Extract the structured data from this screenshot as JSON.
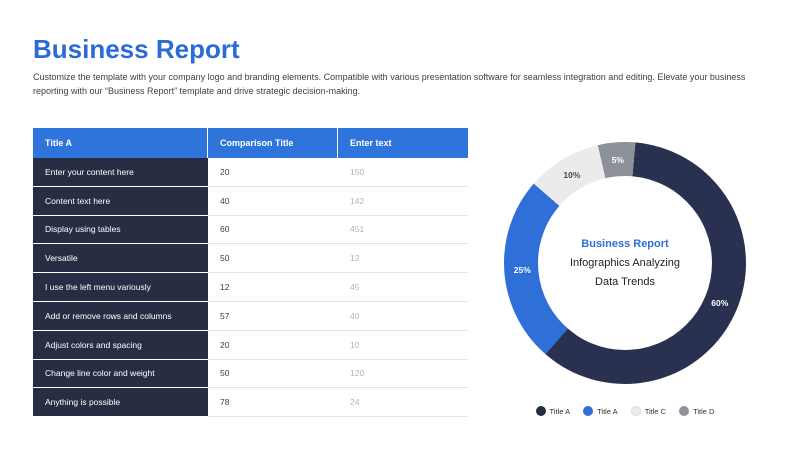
{
  "title": "Business Report",
  "subtitle": "Customize the template with your company logo and branding elements. Compatible with various presentation software for seamless integration and editing. Elevate your business reporting with our “Business Report” template and drive strategic decision-making.",
  "table": {
    "headers": [
      "Title A",
      "Comparison Title",
      "Enter text"
    ],
    "rows": [
      {
        "label": "Enter your content here",
        "value1": "20",
        "value2": "150"
      },
      {
        "label": "Content text here",
        "value1": "40",
        "value2": "142"
      },
      {
        "label": "Display using tables",
        "value1": "60",
        "value2": "451"
      },
      {
        "label": "Versatile",
        "value1": "50",
        "value2": "12"
      },
      {
        "label": "I use the left menu variously",
        "value1": "12",
        "value2": "45"
      },
      {
        "label": "Add or remove rows and columns",
        "value1": "57",
        "value2": "40"
      },
      {
        "label": "Adjust colors and spacing",
        "value1": "20",
        "value2": "10"
      },
      {
        "label": "Change line color and weight",
        "value1": "50",
        "value2": "120"
      },
      {
        "label": "Anything is possible",
        "value1": "78",
        "value2": "24"
      }
    ]
  },
  "chart_data": {
    "type": "pie",
    "subtype": "donut",
    "title": "Business Report",
    "center_title": "Business Report",
    "center_lines": [
      "Infographics Analyzing",
      "Data Trends"
    ],
    "start_angle_deg": -13,
    "segments": [
      {
        "label": "Title D",
        "value": 5,
        "color": "#8d9199",
        "label_color": "#ffffff"
      },
      {
        "label": "Title A",
        "value": 60,
        "color": "#2a3150",
        "label_color": "#ffffff"
      },
      {
        "label": "Title A",
        "value": 25,
        "color": "#2e6fd8",
        "label_color": "#ffffff"
      },
      {
        "label": "Title C",
        "value": 10,
        "color": "#ebebed",
        "label_color": "#4a4a4a"
      }
    ],
    "legend_position": "bottom",
    "legend": [
      {
        "label": "Title A",
        "color": "#272e44"
      },
      {
        "label": "Title A",
        "color": "#2e6fd8"
      },
      {
        "label": "Title C",
        "color": "#ebebed"
      },
      {
        "label": "Title D",
        "color": "#8d9199"
      }
    ]
  },
  "colors": {
    "accent_blue": "#2b6bd6",
    "table_header_blue": "#2e74da",
    "table_row_navy": "#272e44"
  }
}
